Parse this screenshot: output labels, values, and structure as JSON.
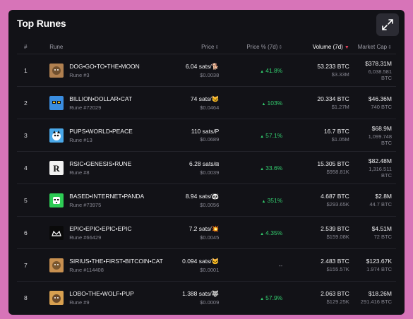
{
  "title": "Top Runes",
  "expand_icon": "expand-arrows-icon",
  "columns": {
    "num": "#",
    "rune": "Rune",
    "price": "Price",
    "pct": "Price % (7d)",
    "volume": "Volume (7d)",
    "cap": "Market Cap"
  },
  "rows": [
    {
      "num": "1",
      "name": "DOG•GO•TO•THE•MOON",
      "id": "Rune #3",
      "price": "6.04 sats/🐕",
      "price_usd": "$0.0038",
      "pct": "41.8%",
      "vol": "53.233 BTC",
      "vol_usd": "$3.33M",
      "cap": "$378.31M",
      "cap_btc": "6,038.581 BTC",
      "icon_color": "#b08050"
    },
    {
      "num": "2",
      "name": "BILLION•DOLLAR•CAT",
      "id": "Rune #72029",
      "price": "74 sats/😼",
      "price_usd": "$0.0464",
      "pct": "103%",
      "vol": "20.334 BTC",
      "vol_usd": "$1.27M",
      "cap": "$46.36M",
      "cap_btc": "740 BTC",
      "icon_color": "#3a8de0"
    },
    {
      "num": "3",
      "name": "PUPS•WORLD•PEACE",
      "id": "Rune #13",
      "price": "110 sats/P",
      "price_usd": "$0.0689",
      "pct": "57.1%",
      "vol": "16.7 BTC",
      "vol_usd": "$1.05M",
      "cap": "$68.9M",
      "cap_btc": "1,099.748 BTC",
      "icon_color": "#4aa8e8"
    },
    {
      "num": "4",
      "name": "RSIC•GENESIS•RUNE",
      "id": "Rune #8",
      "price": "6.28 sats/⧈",
      "price_usd": "$0.0039",
      "pct": "33.6%",
      "vol": "15.305 BTC",
      "vol_usd": "$958.81K",
      "cap": "$82.48M",
      "cap_btc": "1,316.511 BTC",
      "icon_color": "#f2f2f2"
    },
    {
      "num": "5",
      "name": "BASED•INTERNET•PANDA",
      "id": "Rune #73975",
      "price": "8.94 sats/🐼",
      "price_usd": "$0.0056",
      "pct": "351%",
      "vol": "4.687 BTC",
      "vol_usd": "$293.65K",
      "cap": "$2.8M",
      "cap_btc": "44.7 BTC",
      "icon_color": "#2ecc55"
    },
    {
      "num": "6",
      "name": "EPIC•EPIC•EPIC•EPIC",
      "id": "Rune #66429",
      "price": "7.2 sats/💥",
      "price_usd": "$0.0045",
      "pct": "4.35%",
      "vol": "2.539 BTC",
      "vol_usd": "$159.08K",
      "cap": "$4.51M",
      "cap_btc": "72 BTC",
      "icon_color": "#0a0a0a"
    },
    {
      "num": "7",
      "name": "SIRIUS•THE•FIRST•BITCOIN•CAT",
      "id": "Rune #114408",
      "price": "0.094 sats/🐱",
      "price_usd": "$0.0001",
      "pct": "--",
      "vol": "2.483 BTC",
      "vol_usd": "$155.57K",
      "cap": "$123.67K",
      "cap_btc": "1.974 BTC",
      "icon_color": "#c89050"
    },
    {
      "num": "8",
      "name": "LOBO•THE•WOLF•PUP",
      "id": "Rune #9",
      "price": "1.388 sats/🐺",
      "price_usd": "$0.0009",
      "pct": "57.9%",
      "vol": "2.063 BTC",
      "vol_usd": "$129.25K",
      "cap": "$18.26M",
      "cap_btc": "291.416 BTC",
      "icon_color": "#d8a050"
    }
  ]
}
